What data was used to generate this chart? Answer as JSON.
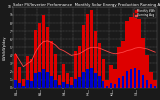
{
  "title": "Solar PV/Inverter Performance  Monthly Solar Energy Production Running Average",
  "title_fontsize": 2.8,
  "background_color": "#1a1a1a",
  "plot_bg_color": "#1a1a1a",
  "bar_color": "#dd0000",
  "avg_line_color": "#ff4444",
  "dot_color": "#0000cc",
  "legend_labels": [
    "Monthly kWh",
    "Running Avg"
  ],
  "legend_colors": [
    "#dd0000",
    "#ff6666"
  ],
  "bar_values": [
    4.2,
    2.6,
    1.1,
    3.9,
    3.5,
    7.2,
    8.0,
    9.0,
    7.5,
    5.8,
    4.2,
    1.6,
    2.9,
    1.8,
    1.3,
    4.5,
    5.2,
    7.8,
    9.1,
    9.6,
    7.0,
    5.5,
    3.5,
    1.0,
    2.8,
    2.3,
    5.0,
    5.8,
    8.3,
    8.8,
    9.3,
    8.5,
    6.2,
    4.0,
    2.0,
    0.9
  ],
  "dot_values": [
    0.9,
    0.6,
    0.2,
    0.9,
    0.8,
    1.8,
    2.0,
    2.3,
    1.9,
    1.5,
    1.0,
    0.4,
    0.7,
    0.5,
    0.3,
    1.1,
    1.3,
    2.0,
    2.3,
    2.5,
    1.8,
    1.4,
    0.8,
    0.2,
    0.6,
    0.5,
    1.2,
    1.5,
    2.1,
    2.3,
    2.4,
    2.2,
    1.6,
    1.0,
    0.5,
    0.2
  ],
  "avg_values": [
    4.2,
    3.4,
    2.6,
    3.0,
    3.3,
    4.4,
    5.2,
    5.7,
    5.8,
    5.6,
    5.3,
    4.8,
    4.6,
    4.3,
    4.0,
    4.1,
    4.2,
    4.5,
    4.8,
    5.0,
    5.0,
    4.9,
    4.7,
    4.5,
    4.3,
    4.2,
    4.3,
    4.4,
    4.6,
    4.7,
    4.9,
    5.0,
    4.9,
    4.8,
    4.6,
    4.4
  ],
  "ylim": [
    0,
    10
  ],
  "n": 36,
  "ylabel": "kWh/kWp/day",
  "ylabel_fontsize": 2.5,
  "yticks": [
    0,
    1,
    2,
    3,
    4,
    5,
    6,
    7,
    8,
    9,
    10
  ],
  "xtick_positions": [
    0,
    6,
    12,
    18,
    24,
    30
  ],
  "xtick_labels": [
    "J\n08",
    "J\n09",
    "J\n10",
    "J\n11",
    "J\n12",
    "J\n13"
  ]
}
